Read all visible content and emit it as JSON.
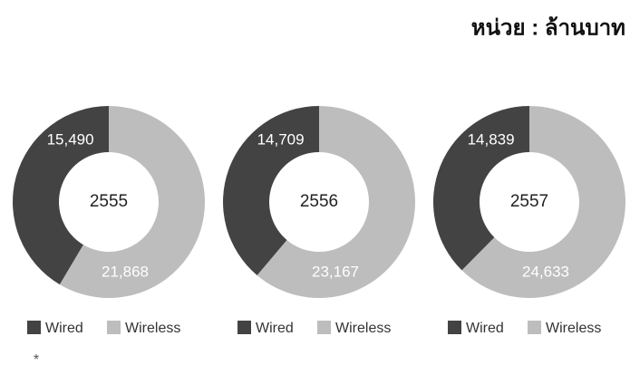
{
  "unit": "หน่วย : ล้านบาท",
  "footnote": "*",
  "chart_data": [
    {
      "type": "donut",
      "title": "2555",
      "categories": [
        "Wired",
        "Wireless"
      ],
      "values": [
        15490,
        21868
      ],
      "value_labels": [
        "15,490",
        "21,868"
      ],
      "colors": [
        "#434343",
        "#bdbdbd"
      ]
    },
    {
      "type": "donut",
      "title": "2556",
      "categories": [
        "Wired",
        "Wireless"
      ],
      "values": [
        14709,
        23167
      ],
      "value_labels": [
        "14,709",
        "23,167"
      ],
      "colors": [
        "#434343",
        "#bdbdbd"
      ]
    },
    {
      "type": "donut",
      "title": "2557",
      "categories": [
        "Wired",
        "Wireless"
      ],
      "values": [
        14839,
        24633
      ],
      "value_labels": [
        "14,839",
        "24,633"
      ],
      "colors": [
        "#434343",
        "#bdbdbd"
      ]
    }
  ]
}
